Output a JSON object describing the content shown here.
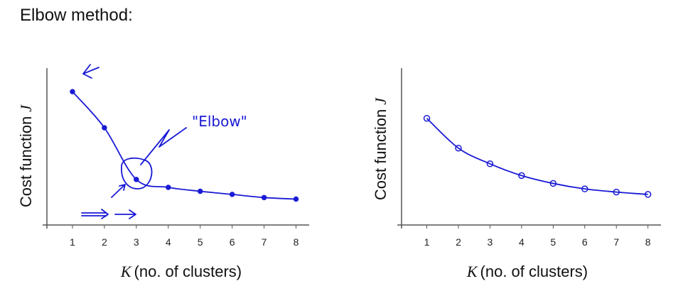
{
  "page": {
    "title": "Elbow method:"
  },
  "colors": {
    "ink": "#1a1ad6",
    "axis": "#555555",
    "text": "#111111"
  },
  "chart_data": [
    {
      "type": "line",
      "x": [
        1,
        2,
        3,
        4,
        5,
        6,
        7,
        8
      ],
      "series": [
        {
          "values": [
            8.5,
            6.2,
            2.9,
            2.4,
            2.15,
            1.95,
            1.75,
            1.65
          ]
        }
      ],
      "xlabel_var": "K",
      "xlabel_text": "(no. of clusters)",
      "ylabel_text": "Cost function",
      "ylabel_var": "J",
      "xlim": [
        0.2,
        8.3
      ],
      "ylim": [
        0,
        10
      ],
      "annotation": "\"Elbow\""
    },
    {
      "type": "line",
      "x": [
        1,
        2,
        3,
        4,
        5,
        6,
        7,
        8
      ],
      "series": [
        {
          "values": [
            6.8,
            4.9,
            3.9,
            3.15,
            2.65,
            2.3,
            2.1,
            1.95
          ]
        }
      ],
      "xlabel_var": "K",
      "xlabel_text": "(no. of clusters)",
      "ylabel_text": "Cost function",
      "ylabel_var": "J",
      "xlim": [
        0.2,
        8.3
      ],
      "ylim": [
        0,
        10
      ]
    }
  ]
}
